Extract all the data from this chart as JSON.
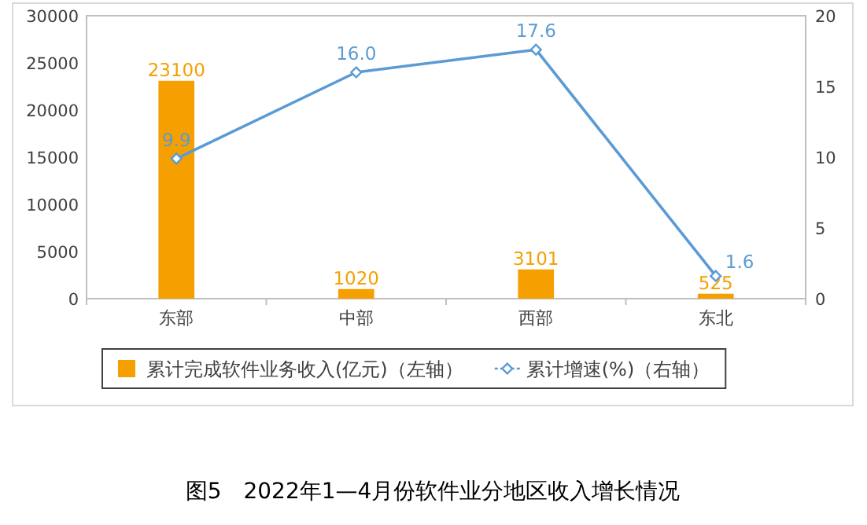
{
  "chart_data": {
    "type": "bar",
    "title": "图5　2022年1—4月份软件业分地区收入增长情况",
    "categories": [
      "东部",
      "中部",
      "西部",
      "东北"
    ],
    "series": [
      {
        "name": "累计完成软件业务收入(亿元)（左轴）",
        "color": "#f5a000",
        "values": [
          23100,
          1020,
          3101,
          525
        ]
      },
      {
        "name": "累计增速(%)（右轴）",
        "type": "line",
        "axis": "y2",
        "color": "#5b9bd5",
        "marker": "diamond",
        "values": [
          9.9,
          16.0,
          17.6,
          1.6
        ],
        "value_labels": [
          "9.9",
          "16.0",
          "17.6",
          "1.6"
        ]
      }
    ],
    "ylim": [
      0,
      30000
    ],
    "yticks": [
      0,
      5000,
      10000,
      15000,
      20000,
      25000,
      30000
    ],
    "y2lim": [
      0,
      20
    ],
    "y2ticks": [
      0,
      5,
      10,
      15,
      20
    ],
    "data_labels": true,
    "legend": "bottom",
    "grid": false
  }
}
